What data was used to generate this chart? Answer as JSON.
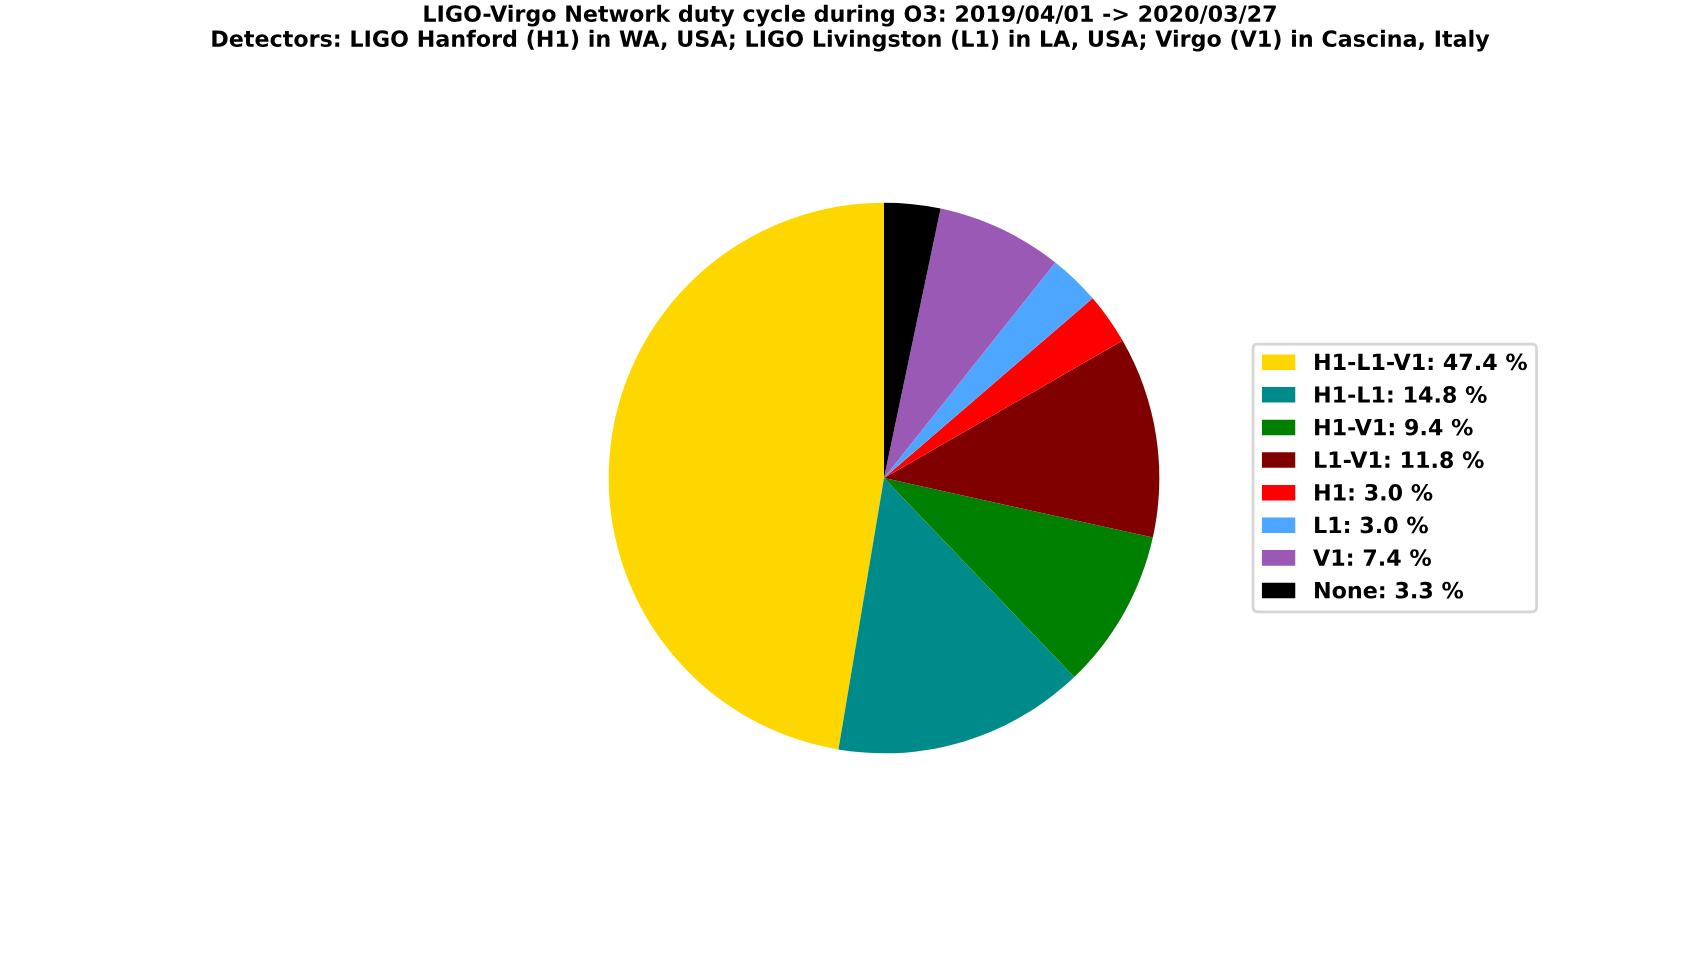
{
  "chart_data": {
    "type": "pie",
    "title": "LIGO-Virgo Network duty cycle during O3: 2019/04/01 -> 2020/03/27\nDetectors: LIGO Hanford (H1) in WA, USA; LIGO Livingston (L1) in LA, USA; Virgo (V1) in Cascina, Italy",
    "categories": [
      "H1-L1-V1",
      "H1-L1",
      "H1-V1",
      "L1-V1",
      "H1",
      "L1",
      "V1",
      "None"
    ],
    "values": [
      47.4,
      14.8,
      9.4,
      11.8,
      3.0,
      3.0,
      7.4,
      3.3
    ],
    "value_labels": [
      "47.4 %",
      "14.8 %",
      "9.4 %",
      "11.8 %",
      "3.0 %",
      "3.0 %",
      "7.4 %",
      "3.3 %"
    ],
    "colors": [
      "#ffd700",
      "#008b8b",
      "#008000",
      "#800000",
      "#ff0000",
      "#4da6ff",
      "#9b59b6",
      "#000000"
    ],
    "legend": "right"
  }
}
